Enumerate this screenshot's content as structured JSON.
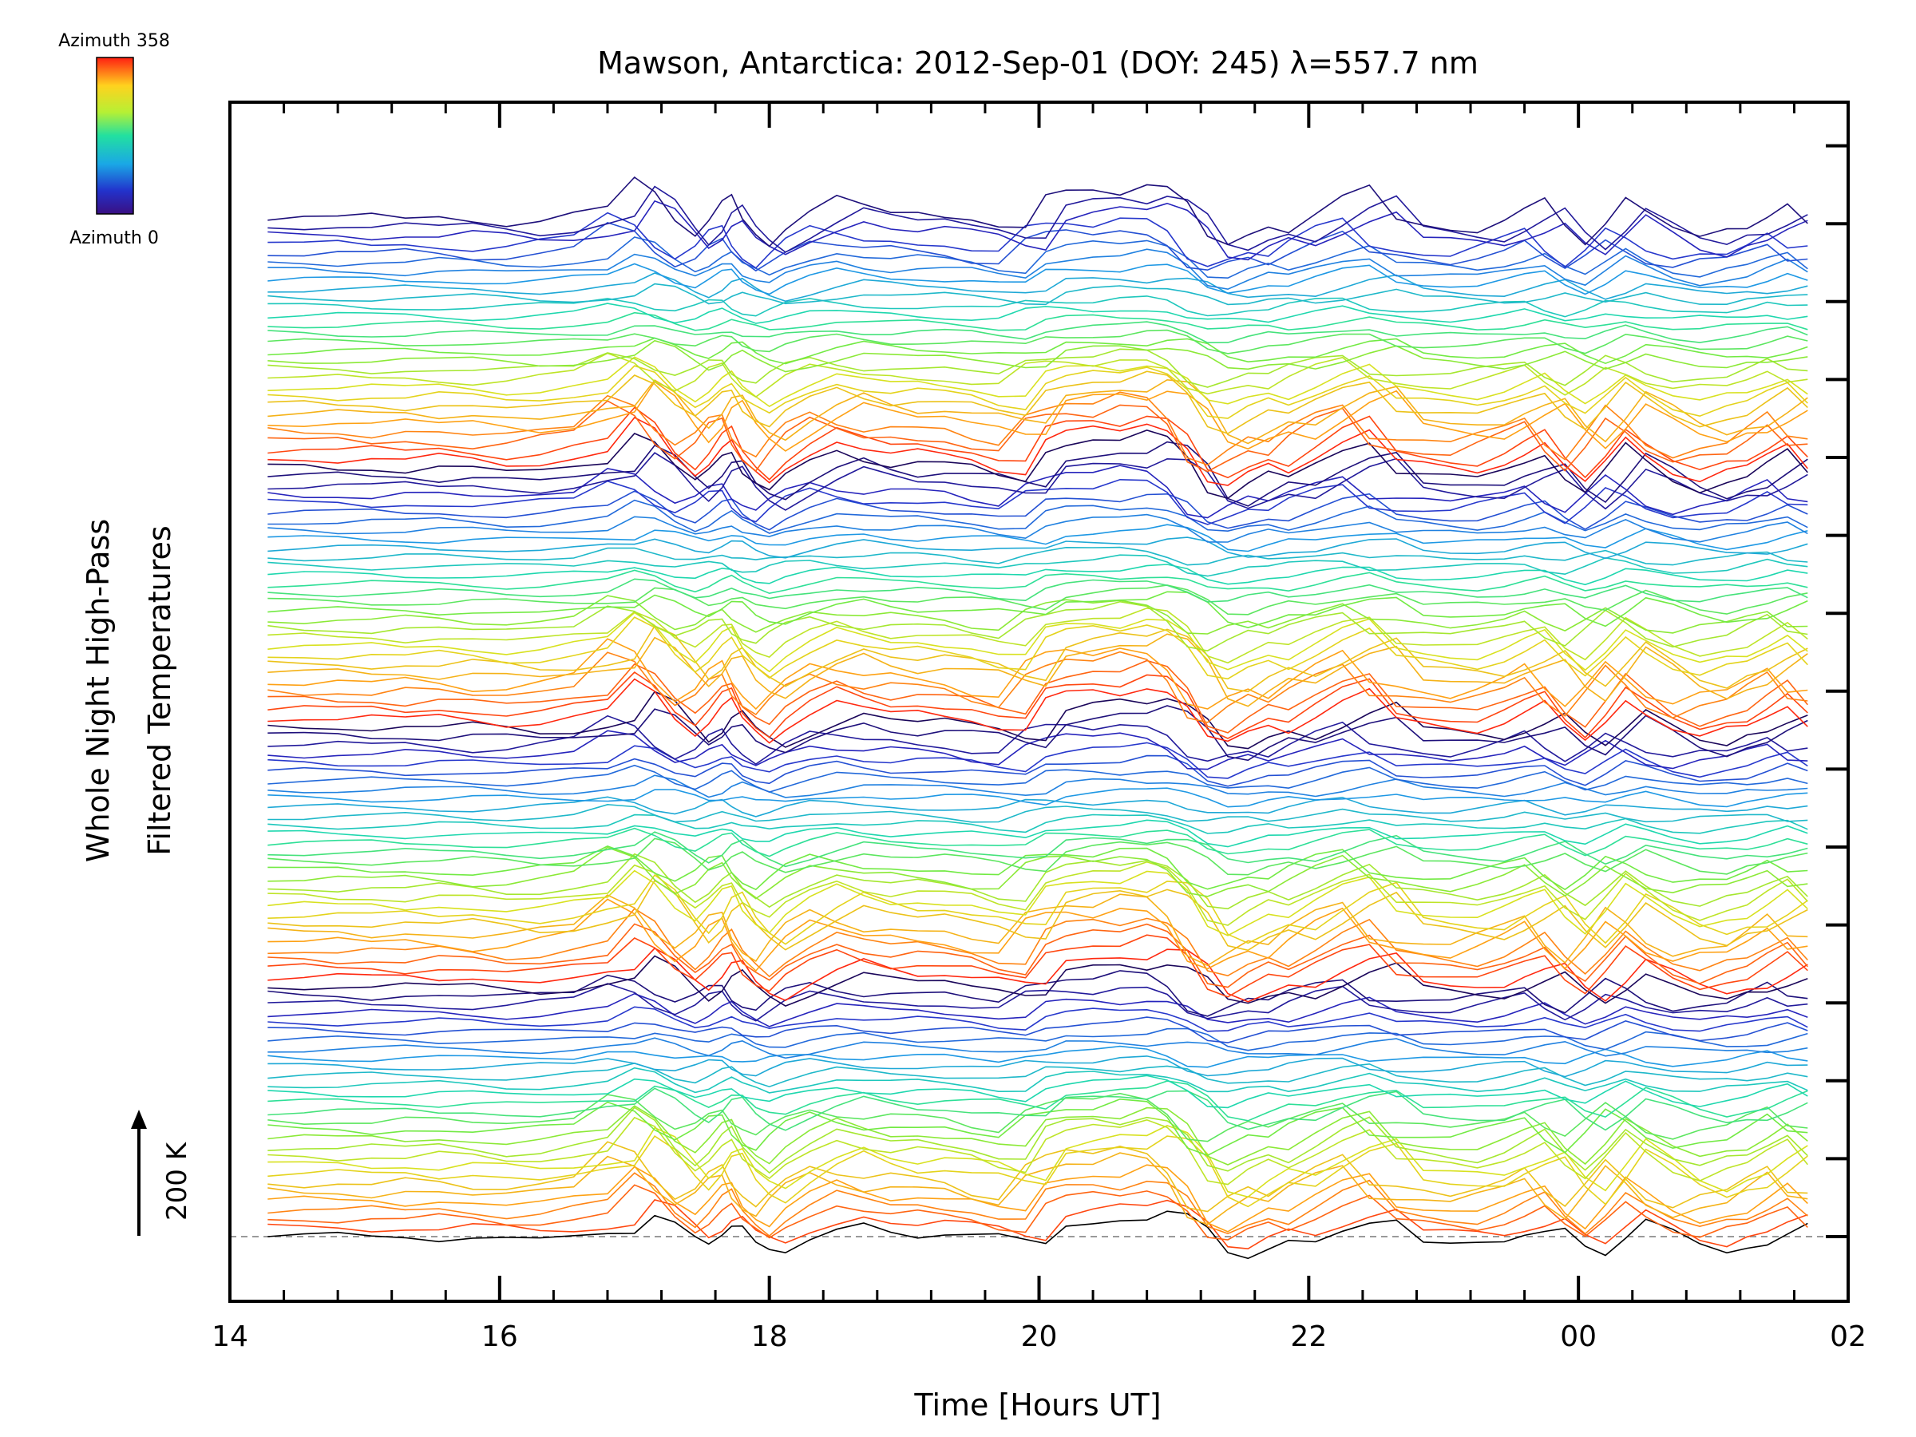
{
  "chart_data": {
    "type": "line",
    "title": "Mawson, Antarctica: 2012-Sep-01 (DOY: 245) λ=557.7 nm",
    "xlabel": "Time [Hours UT]",
    "ylabel_lines": [
      "Whole Night High-Pass",
      "Filtered Temperatures"
    ],
    "x_ticks": [
      "14",
      "16",
      "18",
      "20",
      "22",
      "00",
      "02"
    ],
    "x_tick_values": [
      14,
      16,
      18,
      20,
      22,
      24,
      26
    ],
    "xlim": [
      14,
      26
    ],
    "colorbar": {
      "top_label": "Azimuth 358",
      "bottom_label": "Azimuth 0",
      "colormap": "rainbow"
    },
    "scale_bar_label": "200 K",
    "series_count": 115,
    "azimuth_range": [
      0,
      358
    ],
    "trace_times": [
      14.28,
      14.55,
      14.8,
      15.05,
      15.3,
      15.55,
      15.8,
      16.05,
      16.3,
      16.55,
      16.8,
      17.0,
      17.15,
      17.3,
      17.45,
      17.55,
      17.65,
      17.72,
      17.8,
      17.9,
      18.0,
      18.12,
      18.3,
      18.5,
      18.7,
      18.9,
      19.1,
      19.3,
      19.5,
      19.7,
      19.9,
      20.05,
      20.2,
      20.4,
      20.6,
      20.8,
      20.95,
      21.1,
      21.25,
      21.4,
      21.55,
      21.7,
      21.85,
      22.05,
      22.25,
      22.45,
      22.65,
      22.85,
      23.05,
      23.25,
      23.45,
      23.6,
      23.75,
      23.9,
      24.05,
      24.2,
      24.35,
      24.5,
      24.7,
      24.9,
      25.1,
      25.25,
      25.4,
      25.55,
      25.7
    ],
    "base_profile_K": [
      0,
      2,
      -2,
      1,
      -4,
      3,
      -2,
      -10,
      -6,
      4,
      12,
      60,
      42,
      0,
      -25,
      -5,
      22,
      30,
      -5,
      -25,
      -40,
      -15,
      10,
      30,
      15,
      5,
      10,
      5,
      0,
      -15,
      -20,
      30,
      40,
      45,
      40,
      55,
      48,
      20,
      -35,
      -45,
      -25,
      -10,
      -20,
      5,
      30,
      45,
      -5,
      -10,
      -15,
      -20,
      -5,
      10,
      25,
      -15,
      -40,
      -5,
      35,
      10,
      -20,
      -35,
      -20,
      -15,
      5,
      25,
      -10
    ],
    "grid": false,
    "legend": "colorbar top-left"
  }
}
